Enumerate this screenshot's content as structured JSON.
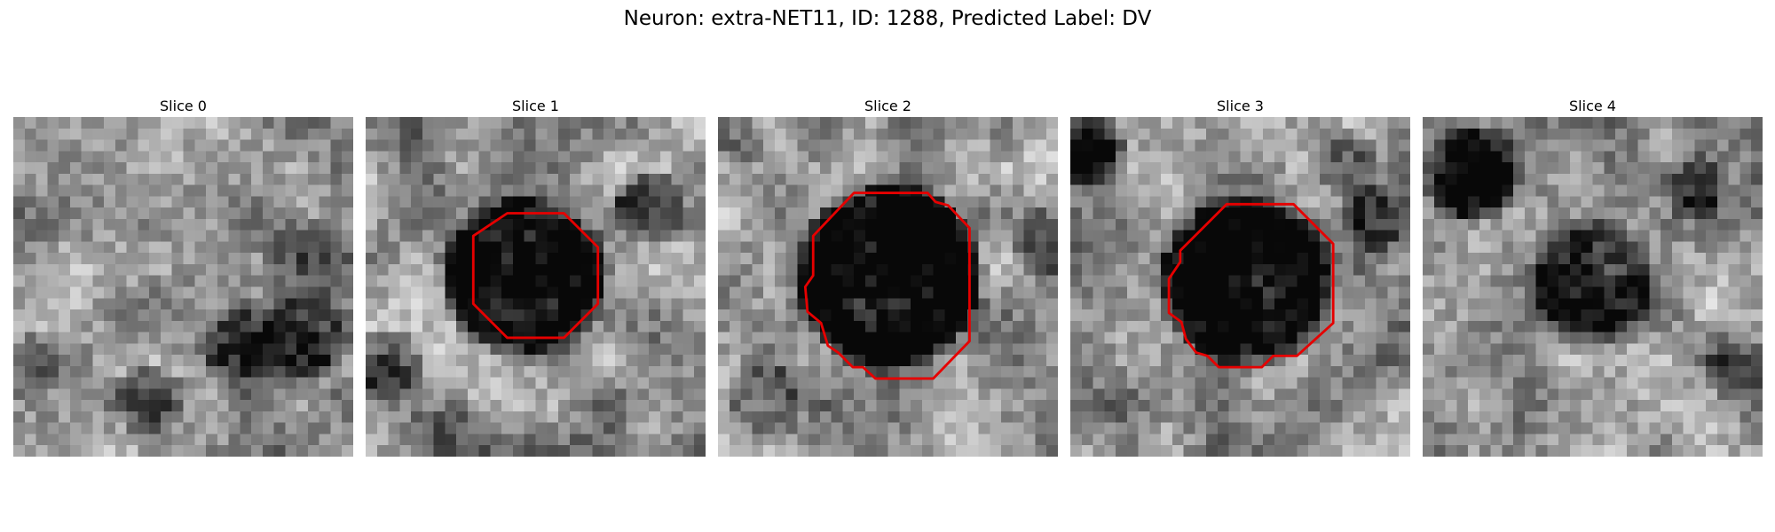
{
  "figure": {
    "title": "Neuron: extra-NET11, ID: 1288, Predicted Label: DV"
  },
  "panels": [
    {
      "title": "Slice 0",
      "has_outline": false
    },
    {
      "title": "Slice 1",
      "has_outline": true
    },
    {
      "title": "Slice 2",
      "has_outline": true
    },
    {
      "title": "Slice 3",
      "has_outline": true
    },
    {
      "title": "Slice 4",
      "has_outline": false
    }
  ],
  "style": {
    "outline_color": "#e60000",
    "colormap": "grayscale"
  }
}
